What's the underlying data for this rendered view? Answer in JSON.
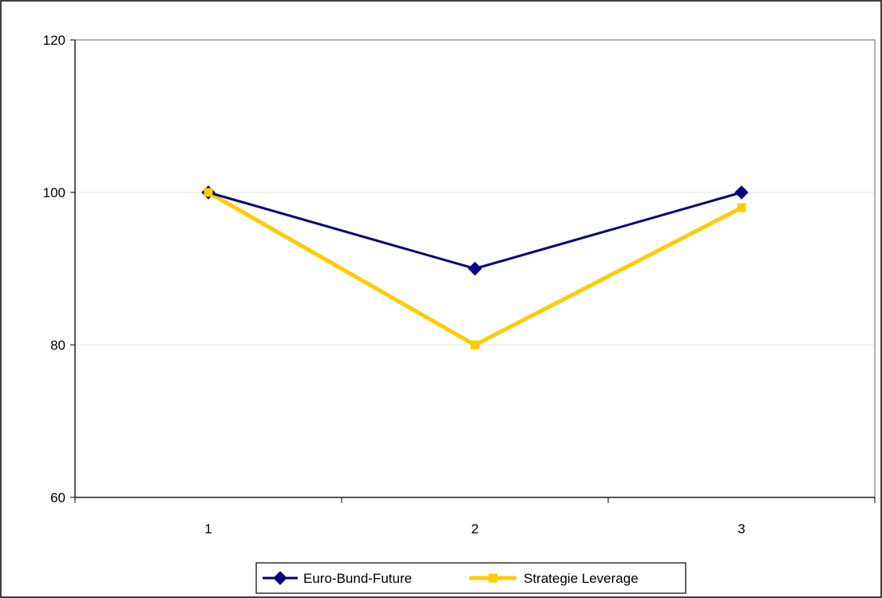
{
  "chart_data": {
    "type": "line",
    "title": "",
    "xlabel": "",
    "ylabel": "",
    "x": [
      1,
      2,
      3
    ],
    "x_tick_labels": [
      "1",
      "2",
      "3"
    ],
    "ylim": [
      60,
      120
    ],
    "y_ticks": [
      60,
      80,
      100,
      120
    ],
    "y_tick_labels": [
      "60",
      "80",
      "100",
      "120"
    ],
    "grid": "horizontal",
    "legend_position": "bottom",
    "series": [
      {
        "name": "Euro-Bund-Future",
        "values": [
          100,
          90,
          100
        ],
        "color": "#000080",
        "marker": "diamond"
      },
      {
        "name": "Strategie Leverage",
        "values": [
          100,
          80,
          98
        ],
        "color": "#FFCC00",
        "marker": "square"
      }
    ]
  }
}
